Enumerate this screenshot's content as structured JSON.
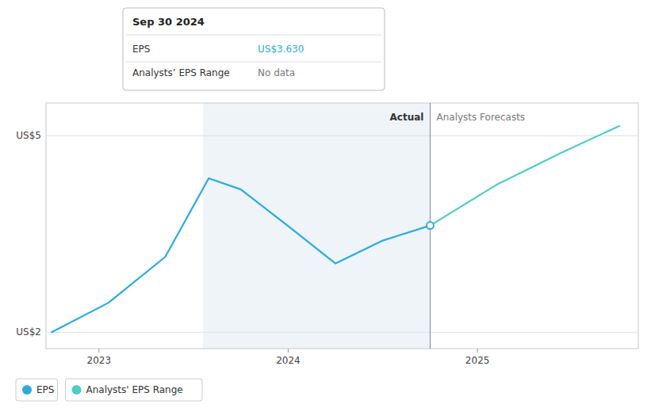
{
  "chart_data": {
    "type": "line",
    "series": [
      {
        "name": "EPS",
        "color": "#29abe2",
        "x": [
          2022.75,
          2023.05,
          2023.35,
          2023.58,
          2023.75,
          2024.0,
          2024.25,
          2024.5,
          2024.75
        ],
        "values": [
          2.0,
          2.45,
          3.15,
          4.35,
          4.18,
          3.62,
          3.05,
          3.4,
          3.63
        ]
      },
      {
        "name": "Analysts' EPS Range",
        "color": "#4ecdc4",
        "x": [
          2024.75,
          2025.1,
          2025.45,
          2025.75
        ],
        "values": [
          3.63,
          4.25,
          4.75,
          5.15
        ]
      }
    ],
    "xlim": [
      2022.72,
      2025.85
    ],
    "ylim": [
      1.75,
      5.5
    ],
    "xticks": [
      2023,
      2024,
      2025
    ],
    "yticks": [
      {
        "value": 2,
        "label": "US$2"
      },
      {
        "value": 5,
        "label": "US$5"
      }
    ],
    "grid": true,
    "legend": "bottom",
    "highlight_x": [
      2023.55,
      2024.75
    ],
    "divider_x": 2024.75,
    "annotations": [
      "Actual",
      "Analysts Forecasts"
    ],
    "tooltip": {
      "title": "Sep 30 2024",
      "rows": [
        {
          "label": "EPS",
          "value": "US$3.630"
        },
        {
          "label": "Analysts’ EPS Range",
          "value": "No data"
        }
      ]
    }
  }
}
